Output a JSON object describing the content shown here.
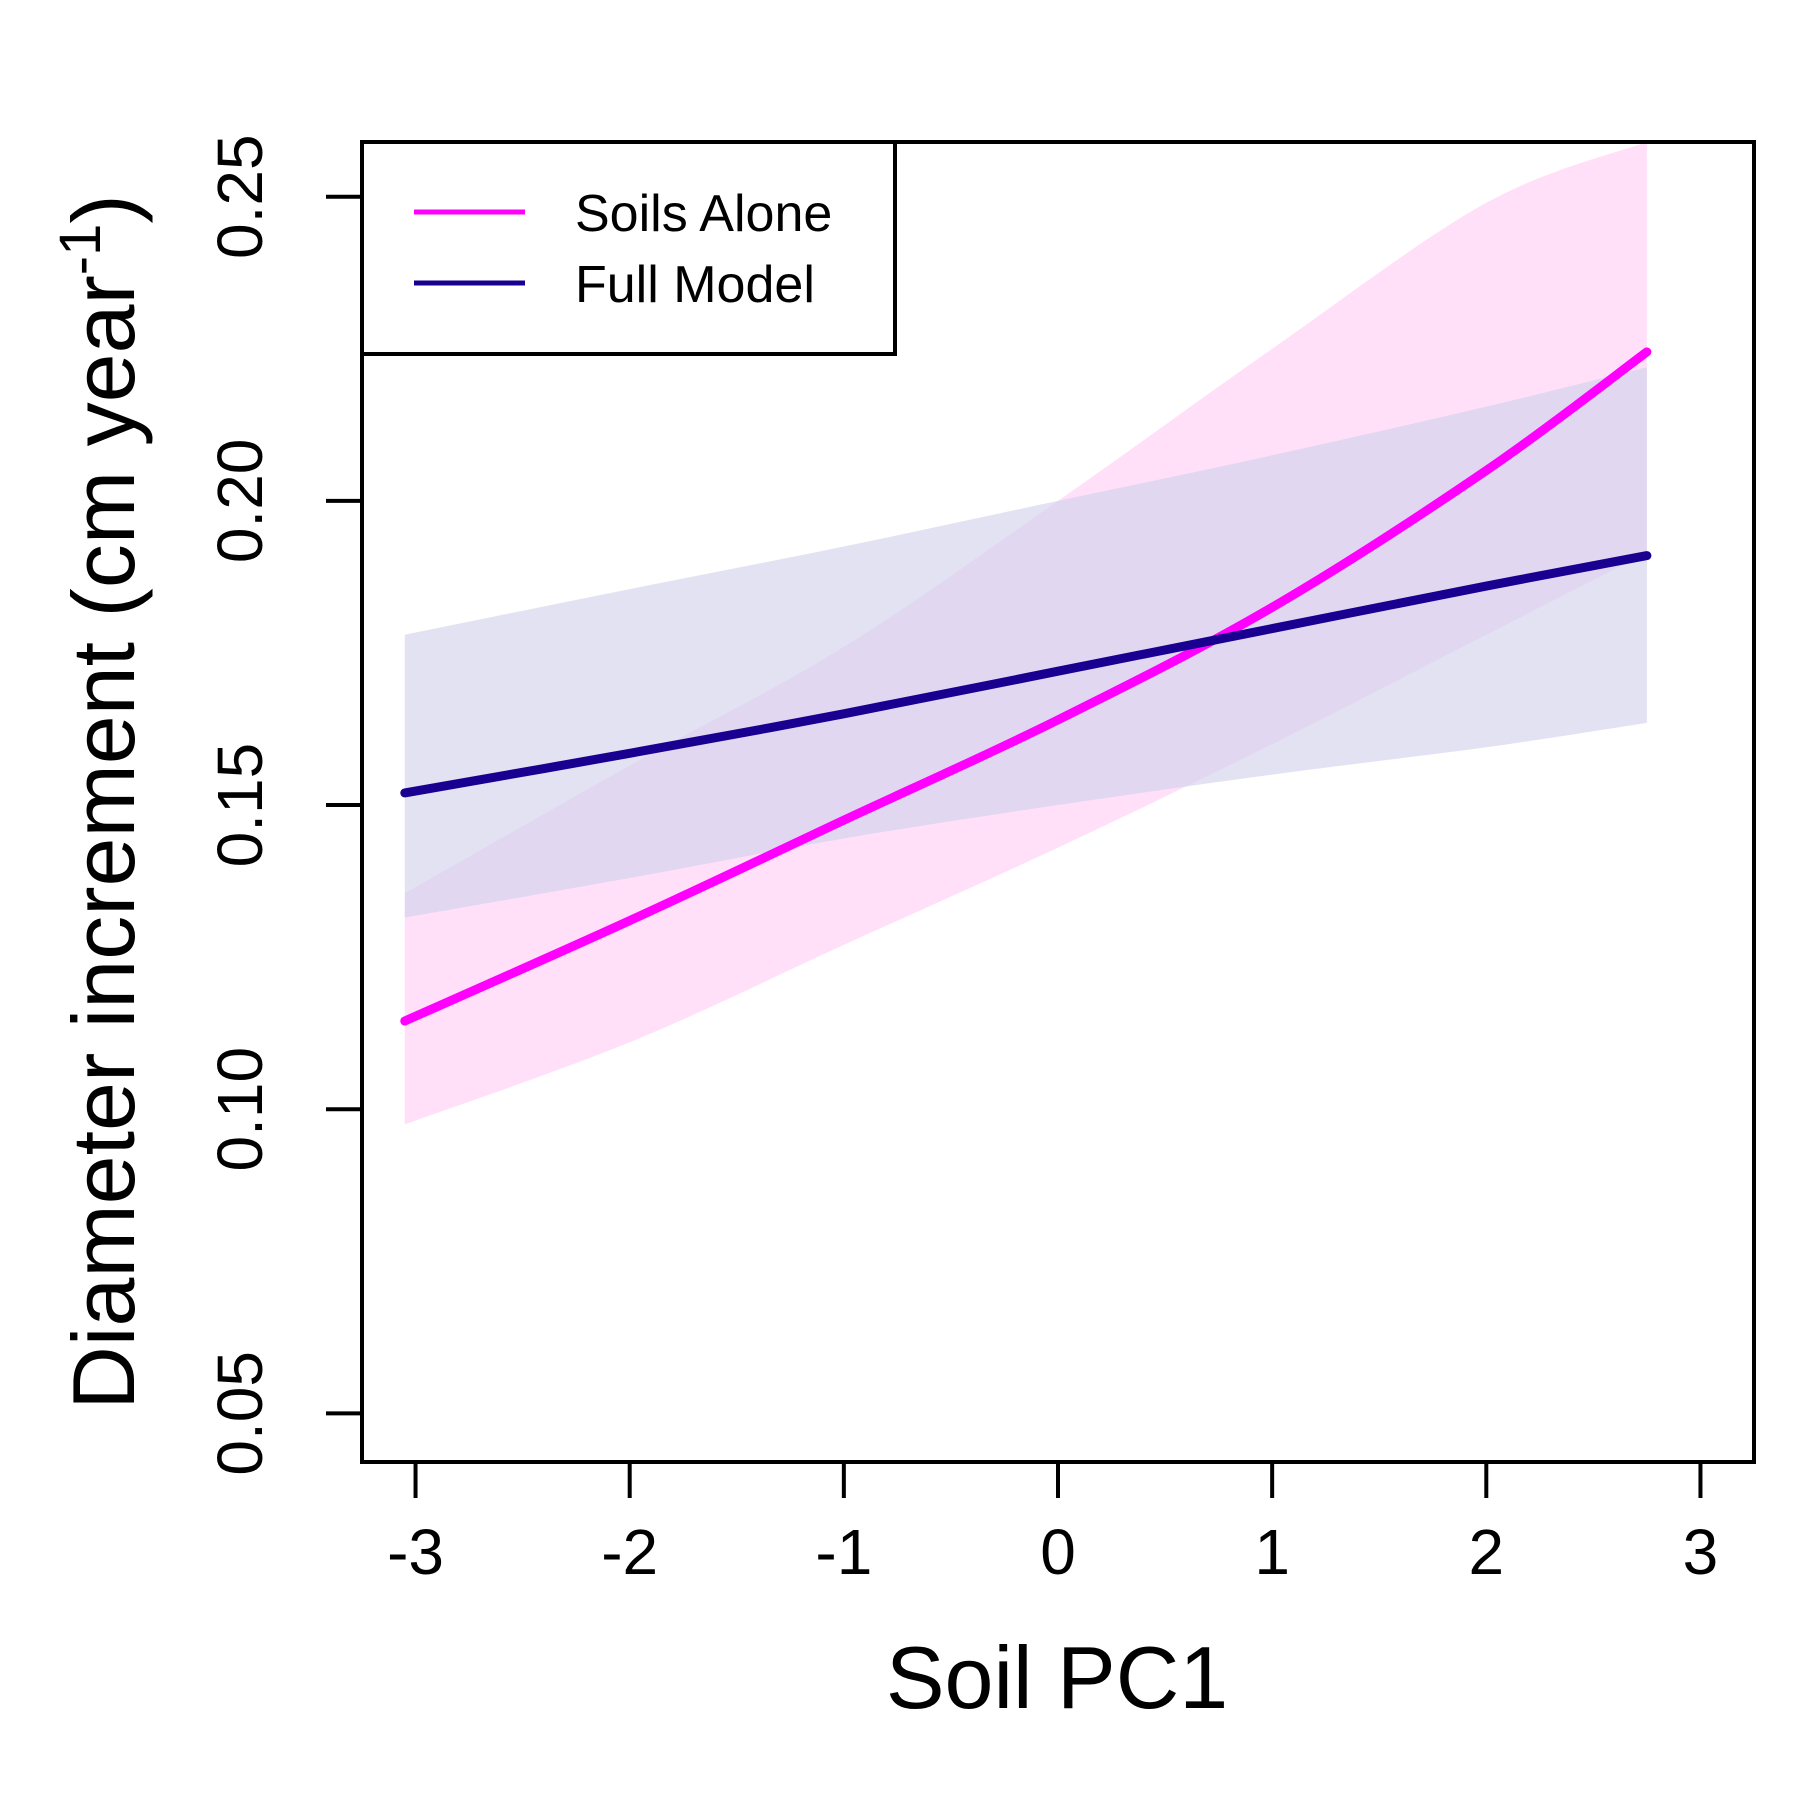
{
  "chart_data": {
    "type": "line",
    "xlabel": "Soil PC1",
    "ylabel_main": "Diameter increment (cm year",
    "ylabel_sup": "-1",
    "ylabel_close": ")",
    "xlim": [
      -3.25,
      3.25
    ],
    "ylim": [
      0.042,
      0.259
    ],
    "x_ticks": [
      -3,
      -2,
      -1,
      0,
      1,
      2,
      3
    ],
    "x_tick_labels": [
      "-3",
      "-2",
      "-1",
      "0",
      "1",
      "2",
      "3"
    ],
    "y_ticks": [
      0.05,
      0.1,
      0.15,
      0.2,
      0.25
    ],
    "y_tick_labels": [
      "0.05",
      "0.10",
      "0.15",
      "0.20",
      "0.25"
    ],
    "legend_position": "top-left",
    "series": [
      {
        "name": "Soils Alone",
        "color": "#FF00FF",
        "band_color": "#FFE0F8",
        "x": [
          -3.05,
          -2,
          -1,
          0,
          1,
          2,
          2.75
        ],
        "y": [
          0.1145,
          0.131,
          0.1475,
          0.164,
          0.1825,
          0.205,
          0.2245
        ],
        "lower": [
          0.0975,
          0.111,
          0.127,
          0.143,
          0.16,
          0.178,
          0.1915
        ],
        "upper": [
          0.1355,
          0.1565,
          0.176,
          0.2,
          0.225,
          0.249,
          0.259
        ]
      },
      {
        "name": "Full Model",
        "color": "#1A0090",
        "band_color": "#D2D2EC",
        "x": [
          -3.05,
          -2,
          -1,
          0,
          1,
          2,
          2.75
        ],
        "y": [
          0.152,
          0.1585,
          0.165,
          0.172,
          0.179,
          0.186,
          0.191
        ],
        "lower": [
          0.1315,
          0.138,
          0.1445,
          0.15,
          0.155,
          0.1595,
          0.1635
        ],
        "upper": [
          0.178,
          0.1855,
          0.1925,
          0.2,
          0.2075,
          0.2155,
          0.222
        ]
      }
    ]
  }
}
